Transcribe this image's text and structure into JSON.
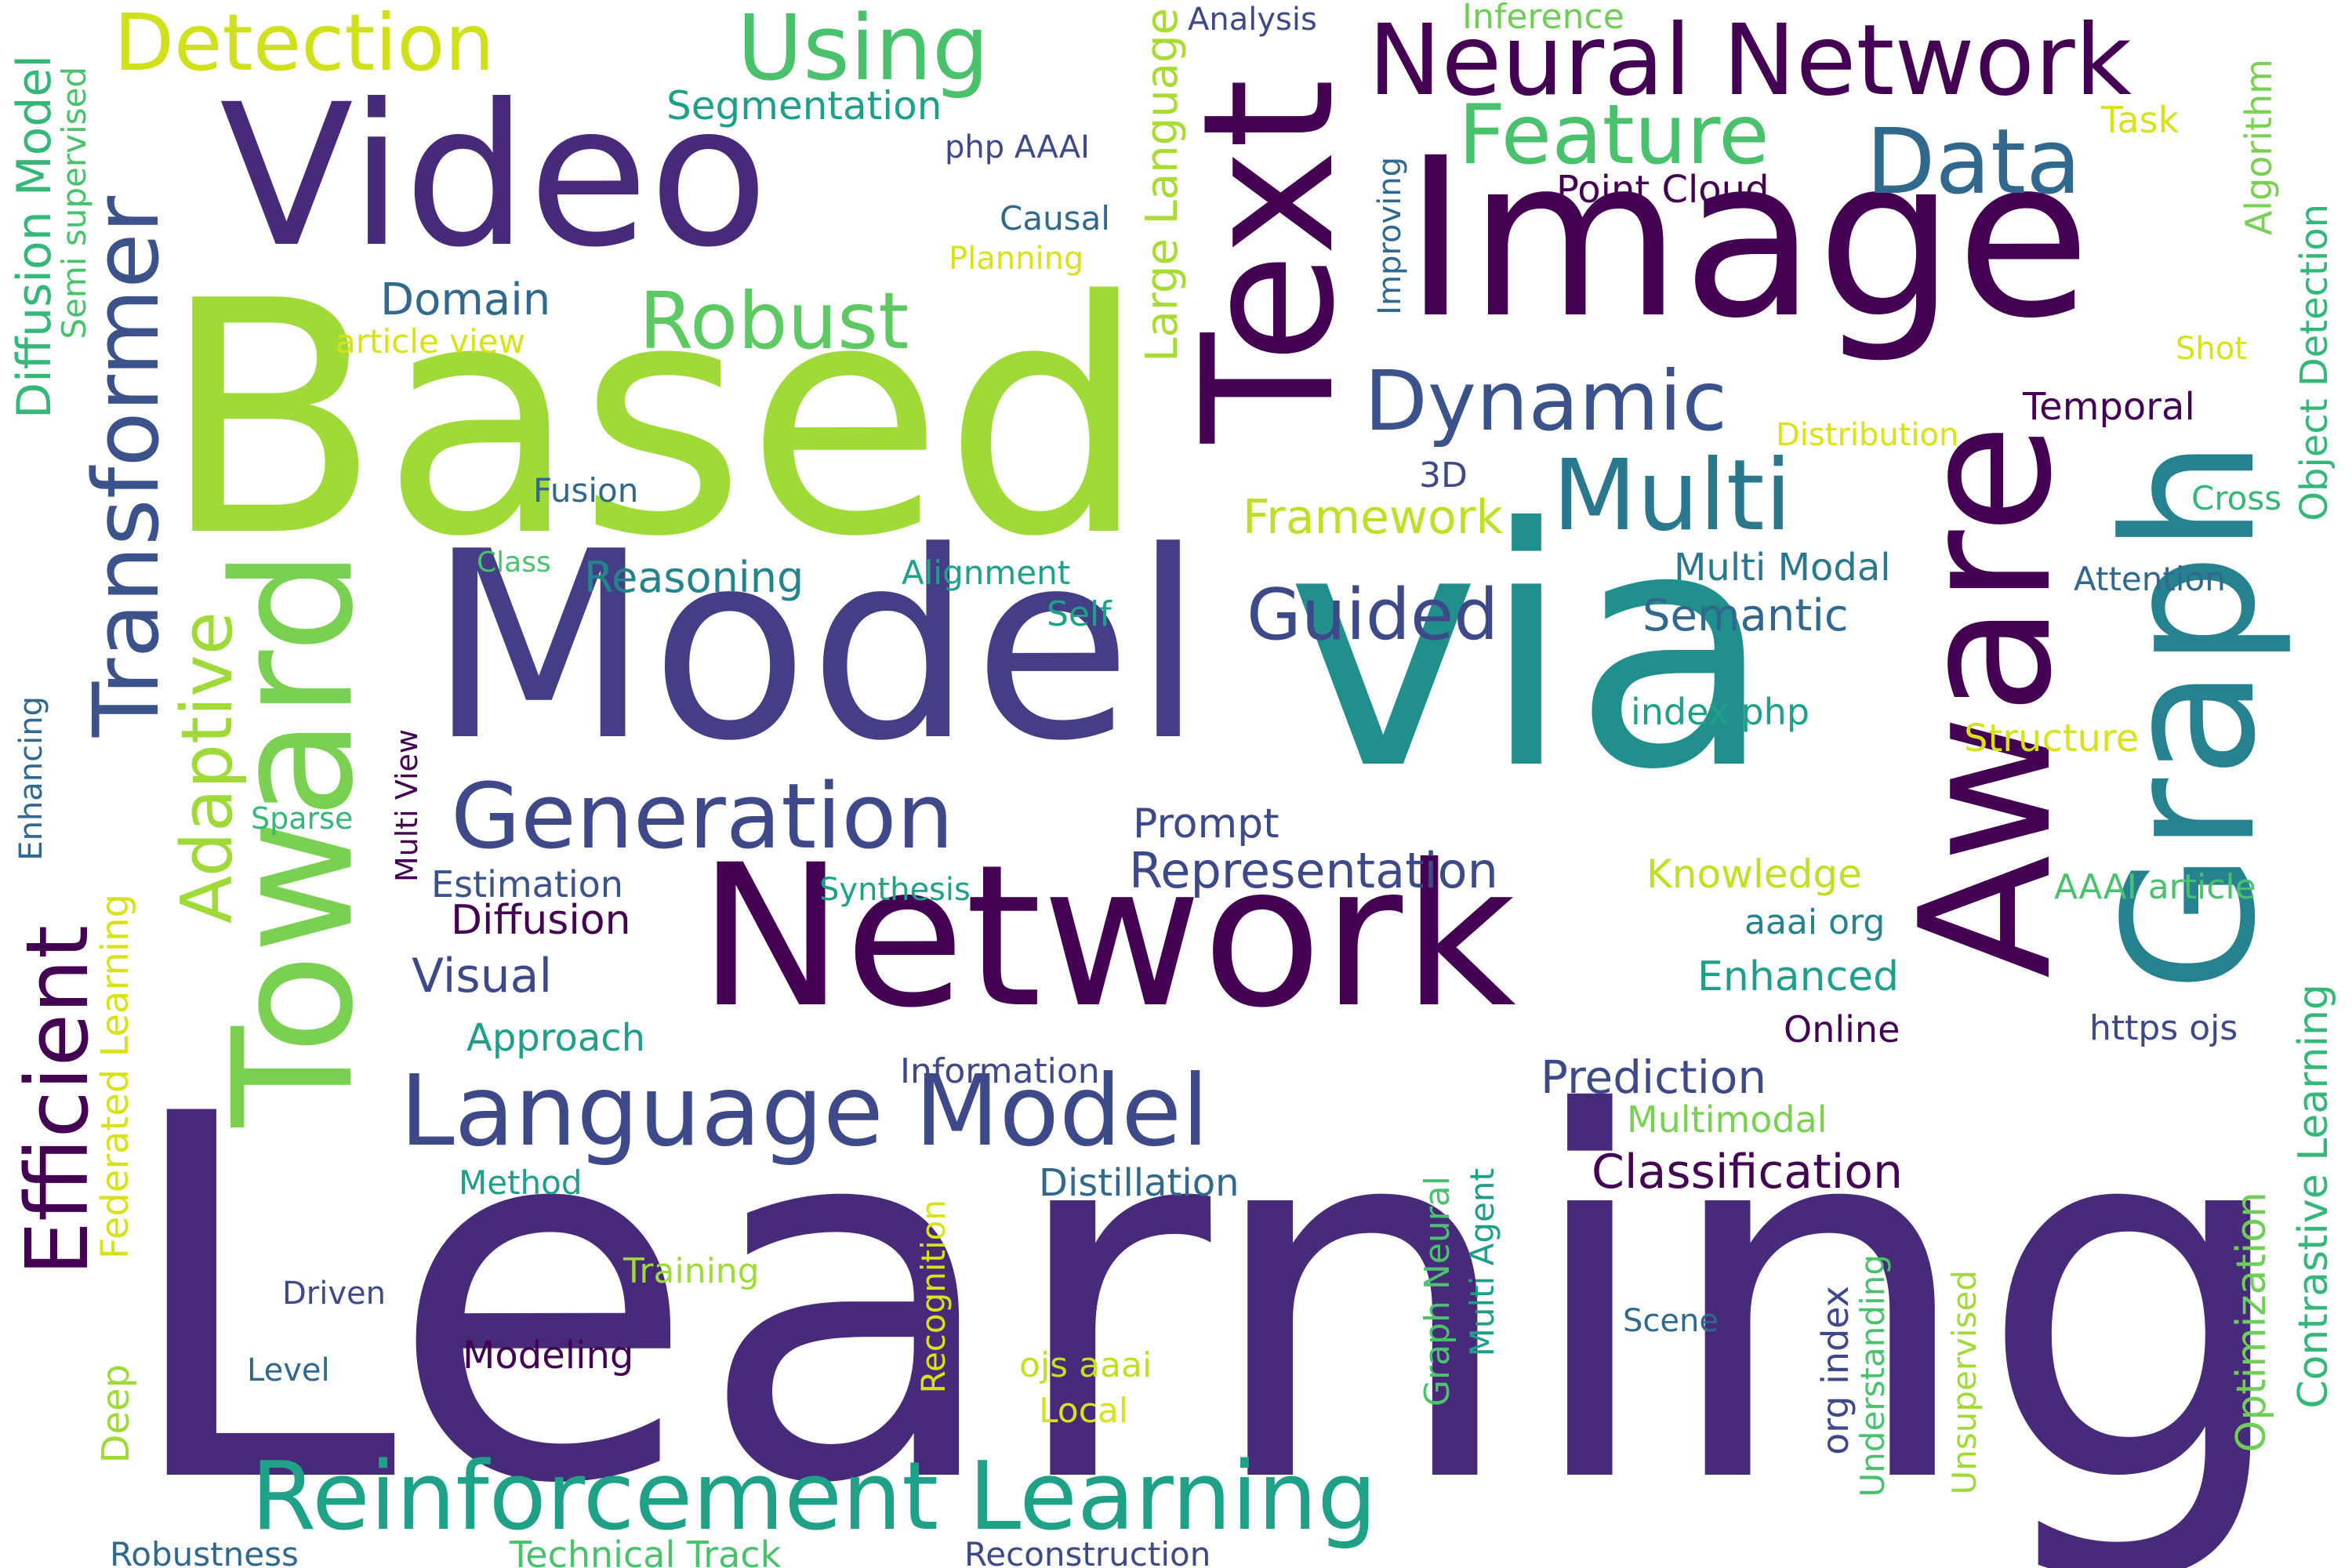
{
  "palette": {
    "deep": "#440154",
    "indigo": "#472a7a",
    "purple": "#3e4989",
    "blue": "#31688e",
    "teal": "#26828e",
    "green": "#1f9e89",
    "mint": "#35b779",
    "lime": "#6ece58",
    "yellowgreen": "#b5de2b",
    "yellow": "#d8e219"
  },
  "words": {
    "learning": "Learning",
    "based": "Based",
    "model": "Model",
    "via": "via",
    "network": "Network",
    "image": "Image",
    "text": "Text",
    "video": "Video",
    "toward": "Toward",
    "aware": "Aware",
    "graph": "Graph",
    "neural_network": "Neural Network",
    "language_model": "Language Model",
    "reinforcement_learning": "Reinforcement Learning",
    "generation": "Generation",
    "transformer": "Transformer",
    "efficient": "Efficient",
    "multi": "Multi",
    "data": "Data",
    "detection": "Detection",
    "using": "Using",
    "feature": "Feature",
    "robust": "Robust",
    "dynamic": "Dynamic",
    "guided": "Guided",
    "adaptive": "Adaptive",
    "representation": "Representation",
    "large_language": "Large Language",
    "diffusion_model": "Diffusion Model",
    "segmentation": "Segmentation",
    "framework": "Framework",
    "domain": "Domain",
    "reasoning": "Reasoning",
    "prediction": "Prediction",
    "classification": "Classification",
    "point_cloud": "Point Cloud",
    "temporal": "Temporal",
    "semantic": "Semantic",
    "multi_modal": "Multi Modal",
    "prompt": "Prompt",
    "visual": "Visual",
    "diffusion": "Diffusion",
    "estimation": "Estimation",
    "knowledge": "Knowledge",
    "enhanced": "Enhanced",
    "multimodal": "Multimodal",
    "distillation": "Distillation",
    "approach": "Approach",
    "information": "Information",
    "method": "Method",
    "training": "Training",
    "modeling": "Modeling",
    "level": "Level",
    "driven": "Driven",
    "deep": "Deep",
    "robustness": "Robustness",
    "technical_track": "Technical Track",
    "reconstruction": "Reconstruction",
    "ojs_aaai": "ojs aaai",
    "local": "Local",
    "scene": "Scene",
    "online": "Online",
    "https_ojs": "https ojs",
    "aaai_org": "aaai org",
    "aaai_article": "AAAI article",
    "structure": "Structure",
    "index_php": "index php",
    "attention": "Attention",
    "cross": "Cross",
    "distribution": "Distribution",
    "shot": "Shot",
    "task": "Task",
    "inference": "Inference",
    "analysis": "Analysis",
    "php_aaai": "php AAAI",
    "causal": "Causal",
    "planning": "Planning",
    "article_view": "article view",
    "fusion": "Fusion",
    "class": "Class",
    "alignment": "Alignment",
    "self": "Self",
    "three_d": "3D",
    "sparse": "Sparse",
    "synthesis": "Synthesis",
    "enhancing": "Enhancing",
    "semi_supervised": "Semi supervised",
    "federated_learning": "Federated Learning",
    "multi_view": "Multi View",
    "improving": "Improving",
    "algorithm": "Algorithm",
    "object_detection": "Object Detection",
    "optimization": "Optimization",
    "contrastive_learning": "Contrastive Learning",
    "unsupervised": "Unsupervised",
    "understanding": "Understanding",
    "org_index": "org index",
    "graph_neural": "Graph Neural",
    "multi_agent": "Multi Agent",
    "recognition": "Recognition"
  }
}
